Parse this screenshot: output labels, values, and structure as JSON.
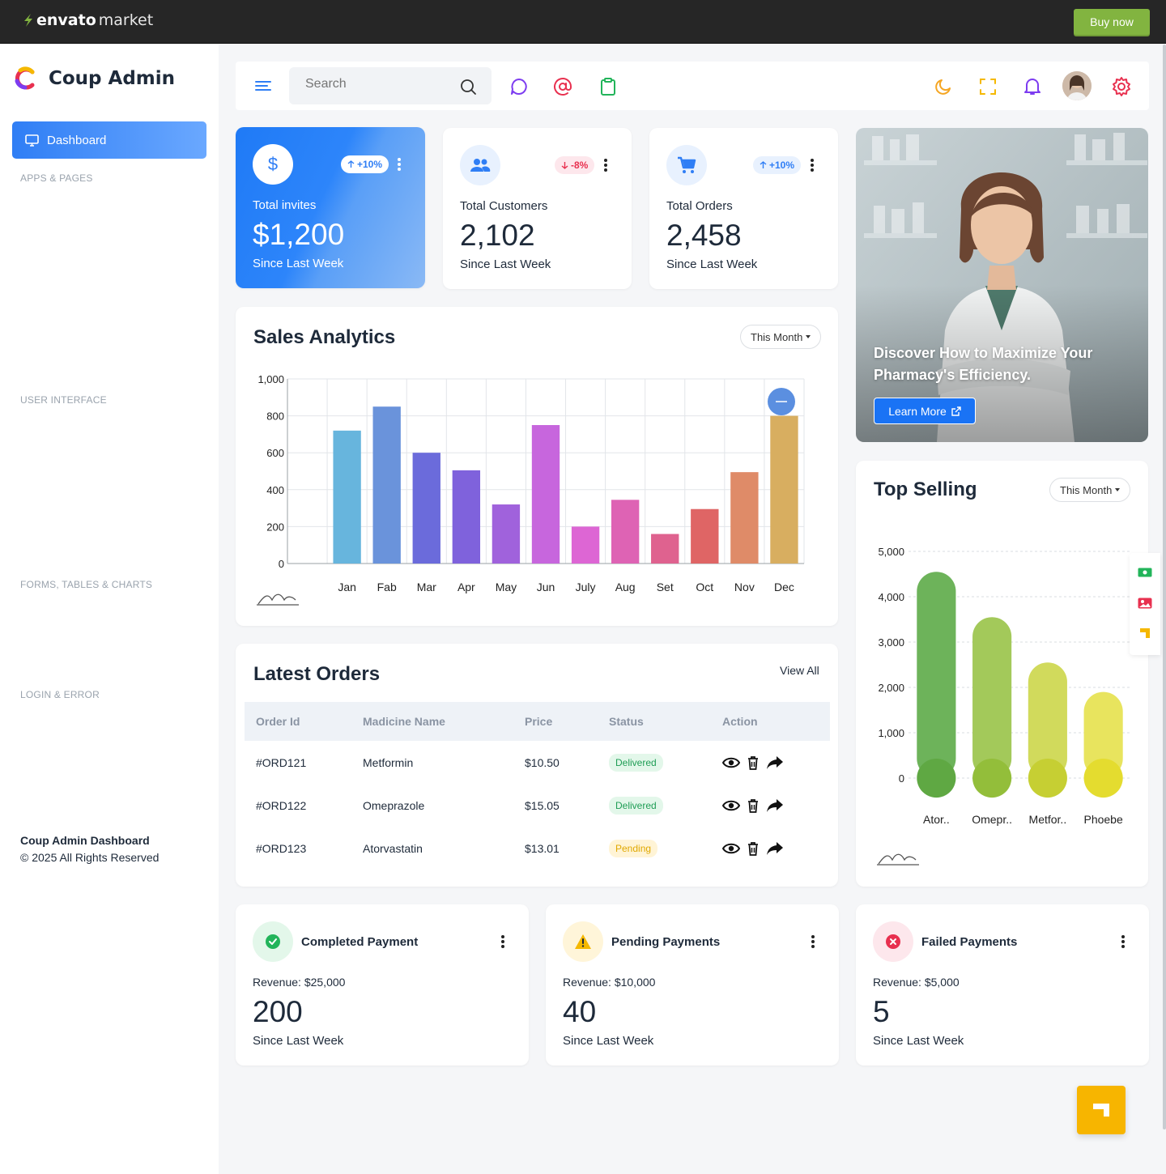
{
  "envato": {
    "logo_bold": "envato",
    "logo_light": "market",
    "buy_label": "Buy now"
  },
  "sidebar": {
    "brand": "Coup Admin",
    "active_item": "Dashboard",
    "sections": [
      "APPS & PAGES",
      "USER INTERFACE",
      "FORMS, TABLES & CHARTS",
      "LOGIN & ERROR"
    ],
    "footer_title": "Coup Admin Dashboard",
    "footer_copy": "© 2025 All Rights Reserved"
  },
  "header": {
    "search_placeholder": "Search"
  },
  "stats": [
    {
      "label": "Total invites",
      "value": "$1,200",
      "since": "Since Last Week",
      "change": "+10%",
      "direction": "up",
      "icon": "dollar-icon"
    },
    {
      "label": "Total Customers",
      "value": "2,102",
      "since": "Since Last Week",
      "change": "-8%",
      "direction": "down",
      "icon": "users-icon"
    },
    {
      "label": "Total Orders",
      "value": "2,458",
      "since": "Since Last Week",
      "change": "+10%",
      "direction": "up",
      "icon": "cart-icon"
    }
  ],
  "promo": {
    "text": "Discover How to Maximize Your Pharmacy's Efficiency.",
    "button": "Learn More"
  },
  "sales": {
    "title": "Sales Analytics",
    "filter": "This Month"
  },
  "top_selling": {
    "title": "Top Selling",
    "filter": "This Month"
  },
  "chart_data": [
    {
      "type": "bar",
      "title": "Sales Analytics",
      "categories": [
        "Jan",
        "Fab",
        "Mar",
        "Apr",
        "May",
        "Jun",
        "July",
        "Aug",
        "Set",
        "Oct",
        "Nov",
        "Dec"
      ],
      "values": [
        720,
        850,
        600,
        505,
        320,
        750,
        200,
        345,
        160,
        295,
        495,
        800
      ],
      "colors": [
        "#67b5dd",
        "#6a93db",
        "#6b6bdb",
        "#7f62dc",
        "#a062dc",
        "#c766dd",
        "#dd66d4",
        "#de63b4",
        "#df628f",
        "#df6565",
        "#df8b68",
        "#d8ae60"
      ],
      "ylim": [
        0,
        1000
      ],
      "yticks": [
        0,
        200,
        400,
        600,
        800,
        1000
      ],
      "yticks_labels": [
        "0",
        "200",
        "400",
        "600",
        "800",
        "1,000"
      ],
      "grid": true
    },
    {
      "type": "bar",
      "title": "Top Selling",
      "categories": [
        "Ator..",
        "Omepr..",
        "Metfor..",
        "Phoebe"
      ],
      "values": [
        4550,
        3550,
        2550,
        1900
      ],
      "colors": [
        "#6db35a",
        "#a3c95a",
        "#d1da5c",
        "#e8e45e"
      ],
      "dot_colors": [
        "#5fa843",
        "#93be3a",
        "#c6cf33",
        "#e4dc2f"
      ],
      "ylim": [
        0,
        5000
      ],
      "yticks": [
        0,
        1000,
        2000,
        3000,
        4000,
        5000
      ],
      "yticks_labels": [
        "0",
        "1,000",
        "2,000",
        "3,000",
        "4,000",
        "5,000"
      ],
      "grid": true
    }
  ],
  "orders": {
    "title": "Latest Orders",
    "view_all": "View All",
    "columns": [
      "Order Id",
      "Madicine Name",
      "Price",
      "Status",
      "Action"
    ],
    "rows": [
      {
        "id": "#ORD121",
        "name": "Metformin",
        "price": "$10.50",
        "status": "Delivered"
      },
      {
        "id": "#ORD122",
        "name": "Omeprazole",
        "price": "$15.05",
        "status": "Delivered"
      },
      {
        "id": "#ORD123",
        "name": "Atorvastatin",
        "price": "$13.01",
        "status": "Pending"
      }
    ]
  },
  "payments": [
    {
      "title": "Completed Payment",
      "revenue": "Revenue: $25,000",
      "value": "200",
      "since": "Since Last Week",
      "icon": "check-circle-icon",
      "color": "#22b45a"
    },
    {
      "title": "Pending Payments",
      "revenue": "Revenue: $10,000",
      "value": "40",
      "since": "Since Last Week",
      "icon": "warning-icon",
      "color": "#f5b800"
    },
    {
      "title": "Failed Payments",
      "revenue": "Revenue: $5,000",
      "value": "5",
      "since": "Since Last Week",
      "icon": "x-circle-icon",
      "color": "#e8304f"
    }
  ],
  "colors": {
    "primary": "#2f7ef5",
    "success": "#22b45a",
    "warning": "#f5b800",
    "danger": "#e8304f",
    "envato_green": "#82b440"
  }
}
